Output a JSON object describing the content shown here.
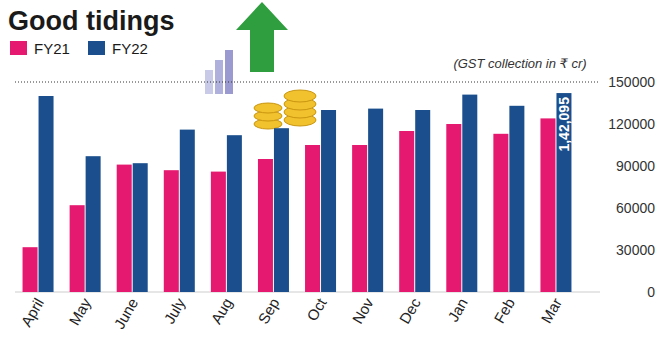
{
  "chart_data": {
    "type": "bar",
    "title": "Good tidings",
    "subtitle": "(GST collection in ₹ cr)",
    "categories": [
      "April",
      "May",
      "June",
      "July",
      "Aug",
      "Sep",
      "Oct",
      "Nov",
      "Dec",
      "Jan",
      "Feb",
      "Mar"
    ],
    "series": [
      {
        "name": "FY21",
        "color": "#e5196f",
        "values": [
          32000,
          62000,
          91000,
          87000,
          86000,
          95000,
          105000,
          105000,
          115000,
          120000,
          113000,
          124000
        ]
      },
      {
        "name": "FY22",
        "color": "#1a4e8c",
        "values": [
          140000,
          97000,
          92000,
          116000,
          112000,
          117000,
          130000,
          131000,
          130000,
          141000,
          133000,
          142095
        ],
        "value_labels": [
          null,
          null,
          null,
          null,
          null,
          null,
          null,
          null,
          null,
          null,
          null,
          "1,42,095"
        ]
      }
    ],
    "ylim": [
      0,
      150000
    ],
    "yticks": [
      0,
      30000,
      60000,
      90000,
      120000,
      150000
    ],
    "grid": false,
    "legend": "top-left"
  }
}
